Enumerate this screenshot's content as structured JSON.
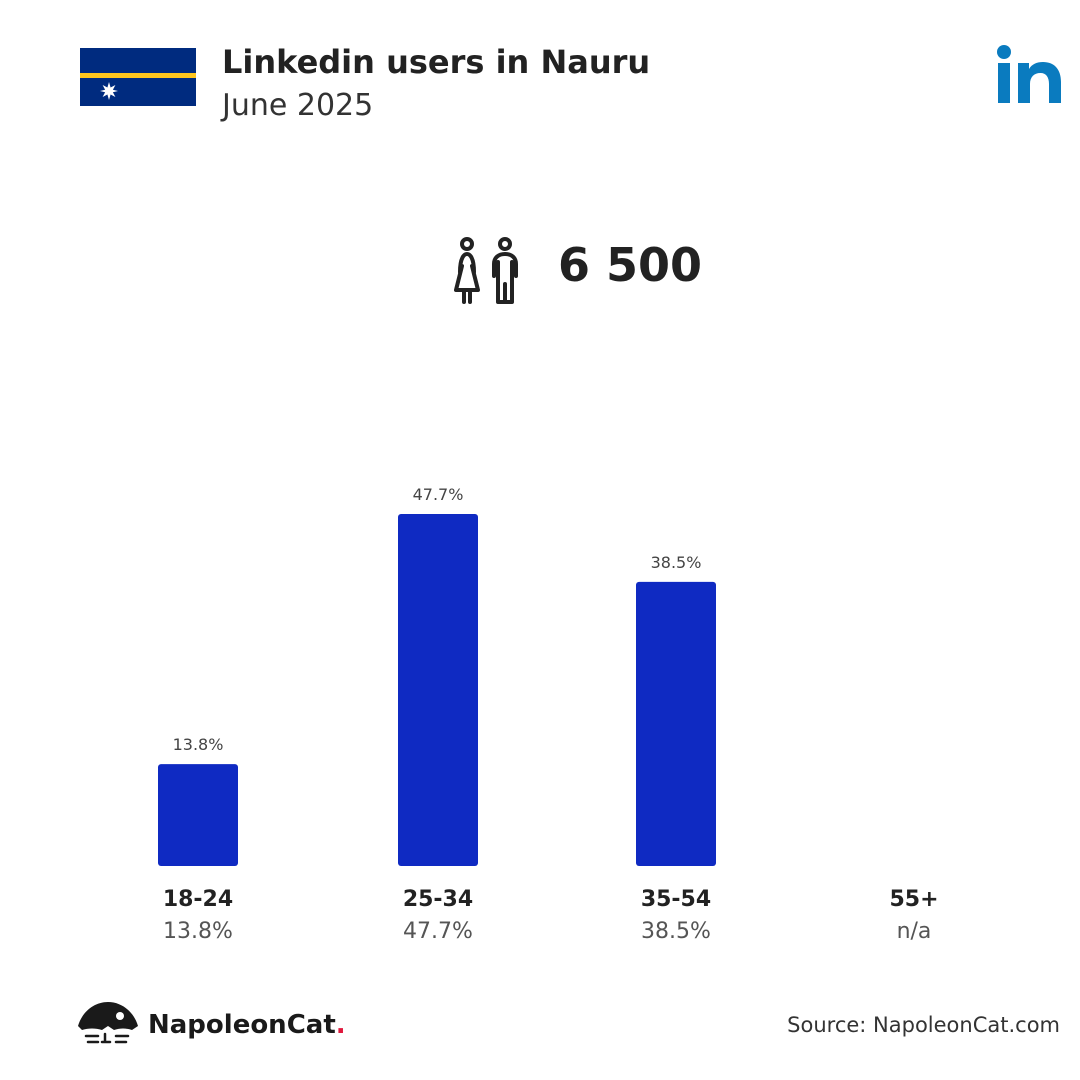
{
  "header": {
    "title": "Linkedin users in Nauru",
    "subtitle": "June 2025",
    "flag_icon": "nauru-flag-icon",
    "logo_icon": "linkedin-logo-icon"
  },
  "summary": {
    "icon": "users-icon",
    "total": "6 500"
  },
  "chart_data": {
    "type": "bar",
    "categories": [
      "18-24",
      "25-34",
      "35-54",
      "55+"
    ],
    "values": [
      13.8,
      47.7,
      38.5,
      null
    ],
    "value_labels": [
      "13.8%",
      "47.7%",
      "38.5%",
      "n/a"
    ],
    "ylim": [
      0,
      55
    ],
    "bar_color": "#0f2ac2",
    "grid": false
  },
  "footer": {
    "brand": "NapoleonCat",
    "brand_dot": ".",
    "source": "Source: NapoleonCat.com"
  },
  "colors": {
    "flag_blue": "#002b7f",
    "flag_yellow": "#ffc61e",
    "linkedin_blue": "#0a7bbf",
    "text_dark": "#222222"
  }
}
